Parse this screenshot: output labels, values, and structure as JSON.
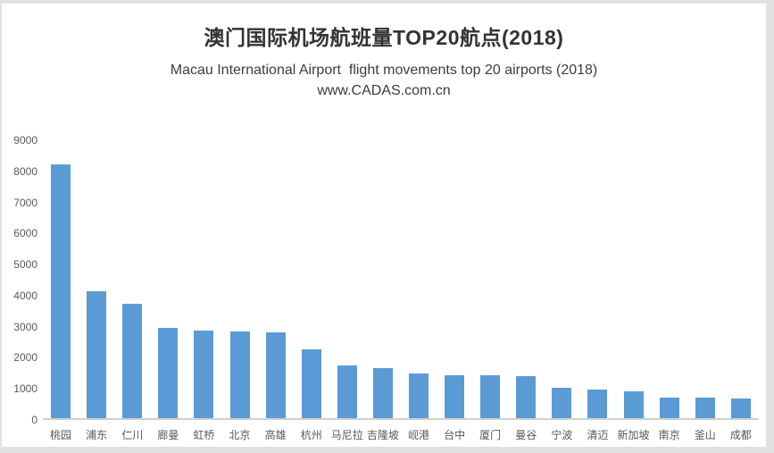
{
  "header": {
    "title": "澳门国际机场航班量TOP20航点(2018)",
    "subtitle": "Macau International Airport  flight movements top 20 airports (2018)",
    "website": "www.CADAS.com.cn"
  },
  "chart_data": {
    "type": "bar",
    "title": "澳门国际机场航班量TOP20航点(2018)",
    "subtitle": "Macau International Airport  flight movements top 20 airports (2018)",
    "source": "www.CADAS.com.cn",
    "categories": [
      "桃园",
      "浦东",
      "仁川",
      "廊曼",
      "虹桥",
      "北京",
      "高雄",
      "杭州",
      "马尼拉",
      "吉隆坡",
      "岘港",
      "台中",
      "厦门",
      "曼谷",
      "宁波",
      "清迈",
      "新加坡",
      "南京",
      "釜山",
      "成都"
    ],
    "values": [
      8230,
      4110,
      3710,
      2930,
      2850,
      2820,
      2790,
      2230,
      1720,
      1620,
      1460,
      1390,
      1380,
      1370,
      980,
      940,
      870,
      660,
      660,
      650
    ],
    "xlabel": "",
    "ylabel": "",
    "ylim": [
      0,
      9000
    ],
    "yticks": [
      0,
      1000,
      2000,
      3000,
      4000,
      5000,
      6000,
      7000,
      8000,
      9000
    ],
    "grid": false,
    "legend": false,
    "bar_color": "#5B9BD5",
    "axis_label_color": "#595959",
    "axis_line_color": "#D0D0D0",
    "background_color": "#FFFFFF"
  }
}
